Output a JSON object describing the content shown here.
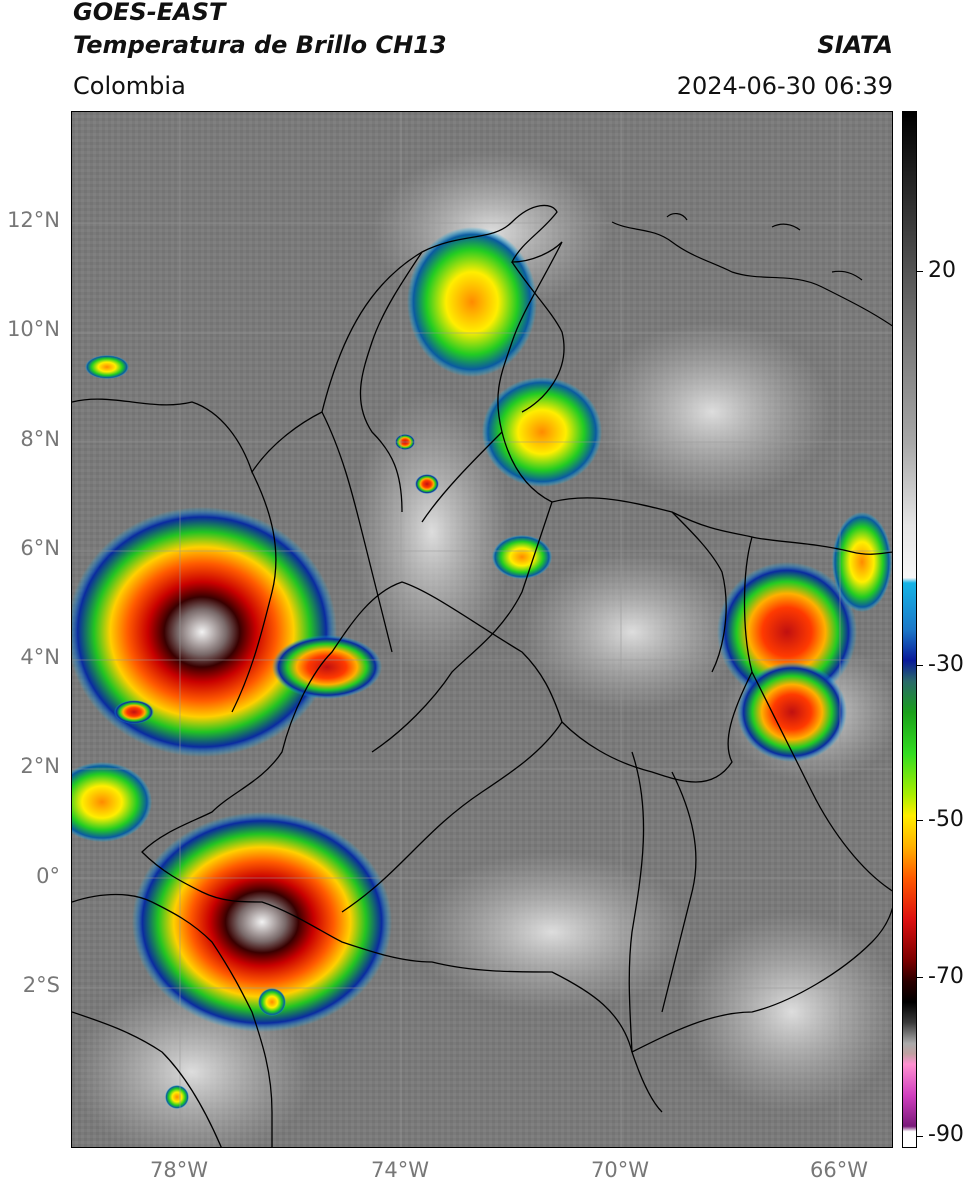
{
  "header": {
    "satellite": "GOES-EAST",
    "product": "Temperatura de Brillo CH13",
    "region": "Colombia",
    "source": "SIATA",
    "datetime": "2024-06-30 06:39"
  },
  "map": {
    "lat_ticks": [
      "12°N",
      "10°N",
      "8°N",
      "6°N",
      "4°N",
      "2°N",
      "0°",
      "2°S"
    ],
    "lon_ticks": [
      "78°W",
      "74°W",
      "70°W",
      "66°W"
    ],
    "background_gray": "#7a7a7a"
  },
  "colorbar": {
    "ticks": [
      "20",
      "-30",
      "-50",
      "-70",
      "-90"
    ],
    "units_range": [
      -92,
      33
    ],
    "colors": {
      "cold_white": "#ffffff",
      "magenta": "#d13fbf",
      "black": "#000000",
      "dark_red": "#5a0000",
      "red": "#e11a1a",
      "orange": "#ff9900",
      "yellow": "#ffee00",
      "green": "#22cc22",
      "blue": "#0a1a9a",
      "cyan": "#14b4e6"
    }
  }
}
